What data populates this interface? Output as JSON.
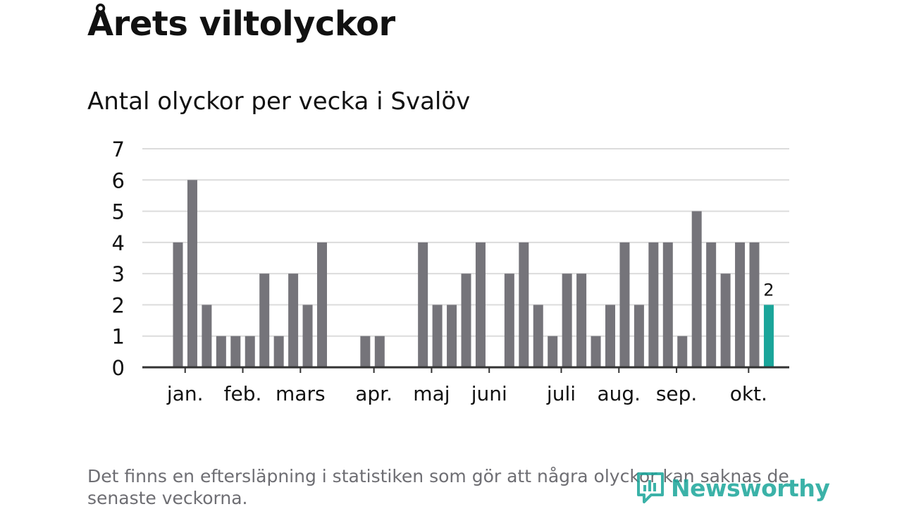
{
  "title": "Årets viltolyckor",
  "subtitle": "Antal olyckor per vecka i Svalöv",
  "footnote": "Det finns en eftersläpning i statistiken som gör att några olyckor kan saknas de senaste veckorna.",
  "brand": {
    "name": "Newsworthy",
    "icon": "newsworthy-logo-icon"
  },
  "colors": {
    "bar": "#75747a",
    "highlight": "#1aa59a",
    "grid": "#dcdcdc",
    "axis": "#333333",
    "text": "#111111"
  },
  "chart_data": {
    "type": "bar",
    "title": "Antal olyckor per vecka i Svalöv",
    "xlabel": "",
    "ylabel": "",
    "ylim": [
      0,
      7
    ],
    "yticks": [
      0,
      1,
      2,
      3,
      4,
      5,
      6,
      7
    ],
    "grid": true,
    "weeks": [
      1,
      2,
      3,
      4,
      5,
      6,
      7,
      8,
      9,
      10,
      11,
      12,
      13,
      14,
      15,
      16,
      17,
      18,
      19,
      20,
      21,
      22,
      23,
      24,
      25,
      26,
      27,
      28,
      29,
      30,
      31,
      32,
      33,
      34,
      35,
      36,
      37,
      38,
      39,
      40,
      41,
      42
    ],
    "values": [
      4,
      6,
      2,
      1,
      1,
      1,
      3,
      1,
      3,
      2,
      4,
      0,
      0,
      1,
      1,
      0,
      0,
      4,
      2,
      2,
      3,
      4,
      0,
      3,
      4,
      2,
      1,
      3,
      3,
      1,
      2,
      4,
      2,
      4,
      4,
      1,
      5,
      4,
      3,
      4,
      4,
      2
    ],
    "highlight_index": 41,
    "highlight_label": "2",
    "month_labels": [
      {
        "label": "jan.",
        "week": 1.5
      },
      {
        "label": "feb.",
        "week": 5.5
      },
      {
        "label": "mars",
        "week": 9.5
      },
      {
        "label": "apr.",
        "week": 14.6
      },
      {
        "label": "maj",
        "week": 18.6
      },
      {
        "label": "juni",
        "week": 22.6
      },
      {
        "label": "juli",
        "week": 27.6
      },
      {
        "label": "aug.",
        "week": 31.6
      },
      {
        "label": "sep.",
        "week": 35.6
      },
      {
        "label": "okt.",
        "week": 40.6
      }
    ]
  }
}
